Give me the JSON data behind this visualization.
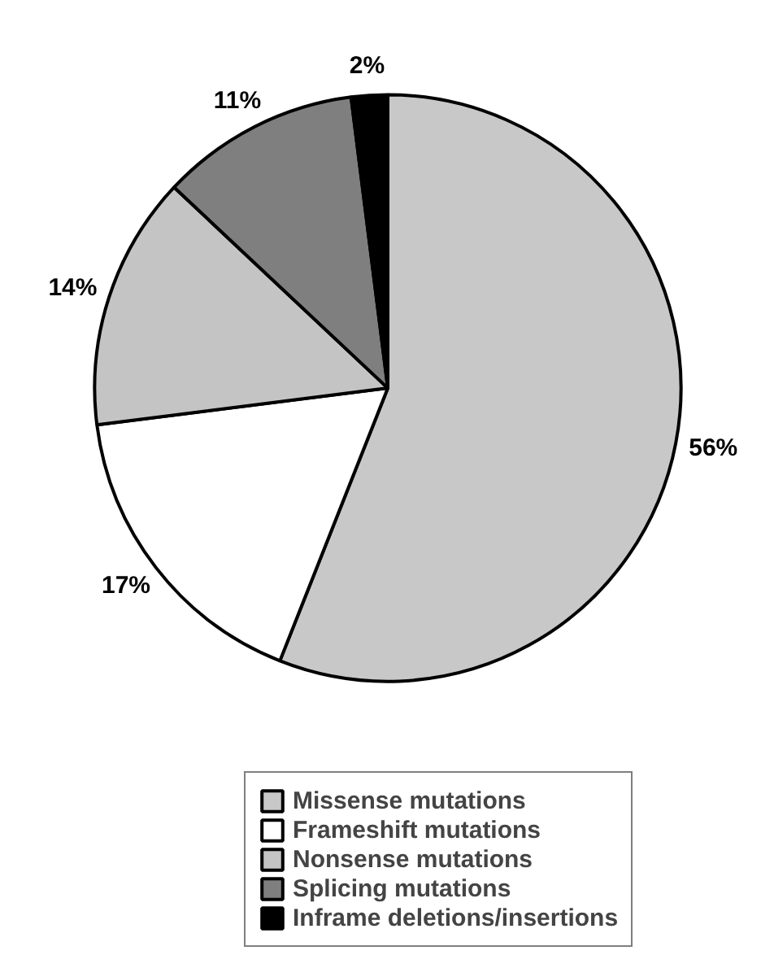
{
  "chart_data": {
    "type": "pie",
    "categories": [
      "Missense mutations",
      "Frameshift mutations",
      "Nonsense mutations",
      "Splicing mutations",
      "Inframe deletions/insertions"
    ],
    "values": [
      56,
      17,
      14,
      11,
      2
    ],
    "colors": [
      "#c8c8c8",
      "#ffffff",
      "#c4c4c4",
      "#7f7f7f",
      "#000000"
    ],
    "value_labels": [
      "56%",
      "17%",
      "14%",
      "11%",
      "2%"
    ],
    "legend": "bottom"
  }
}
